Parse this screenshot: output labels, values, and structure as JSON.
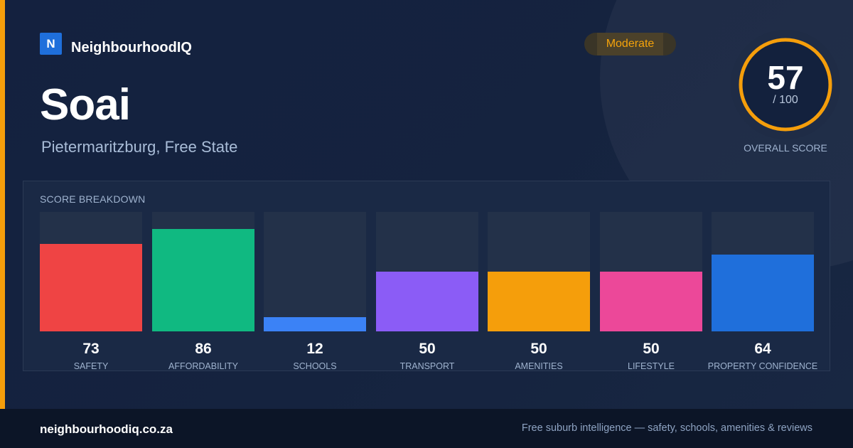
{
  "brand": {
    "logo_letter": "N",
    "name": "NeighbourhoodIQ"
  },
  "suburb": {
    "name": "Soai",
    "location": "Pietermaritzburg, Free State"
  },
  "rating_badge": {
    "label": "Moderate",
    "color": "#f5a30b"
  },
  "overall_score": {
    "value": "57",
    "max_label": "/ 100",
    "fraction": 0.57,
    "caption": "OVERALL SCORE",
    "ring_color": "#f59e0b"
  },
  "breakdown": {
    "title": "SCORE BREAKDOWN",
    "max": 100,
    "categories": [
      {
        "label": "SAFETY",
        "value": 73,
        "color": "#ef4444"
      },
      {
        "label": "AFFORDABILITY",
        "value": 86,
        "color": "#10b981"
      },
      {
        "label": "SCHOOLS",
        "value": 12,
        "color": "#3b82f6"
      },
      {
        "label": "TRANSPORT",
        "value": 50,
        "color": "#8b5cf6"
      },
      {
        "label": "AMENITIES",
        "value": 50,
        "color": "#f59e0b"
      },
      {
        "label": "LIFESTYLE",
        "value": 50,
        "color": "#ec4899"
      },
      {
        "label": "PROPERTY CONFIDENCE",
        "value": 64,
        "color": "#1f6fdb"
      }
    ]
  },
  "footer": {
    "domain": "neighbourhoodiq.co.za",
    "tagline": "Free suburb intelligence — safety, schools, amenities & reviews"
  },
  "colors": {
    "accent": "#f59e0b",
    "background": "#13213d",
    "footer_background": "#0c1527"
  }
}
